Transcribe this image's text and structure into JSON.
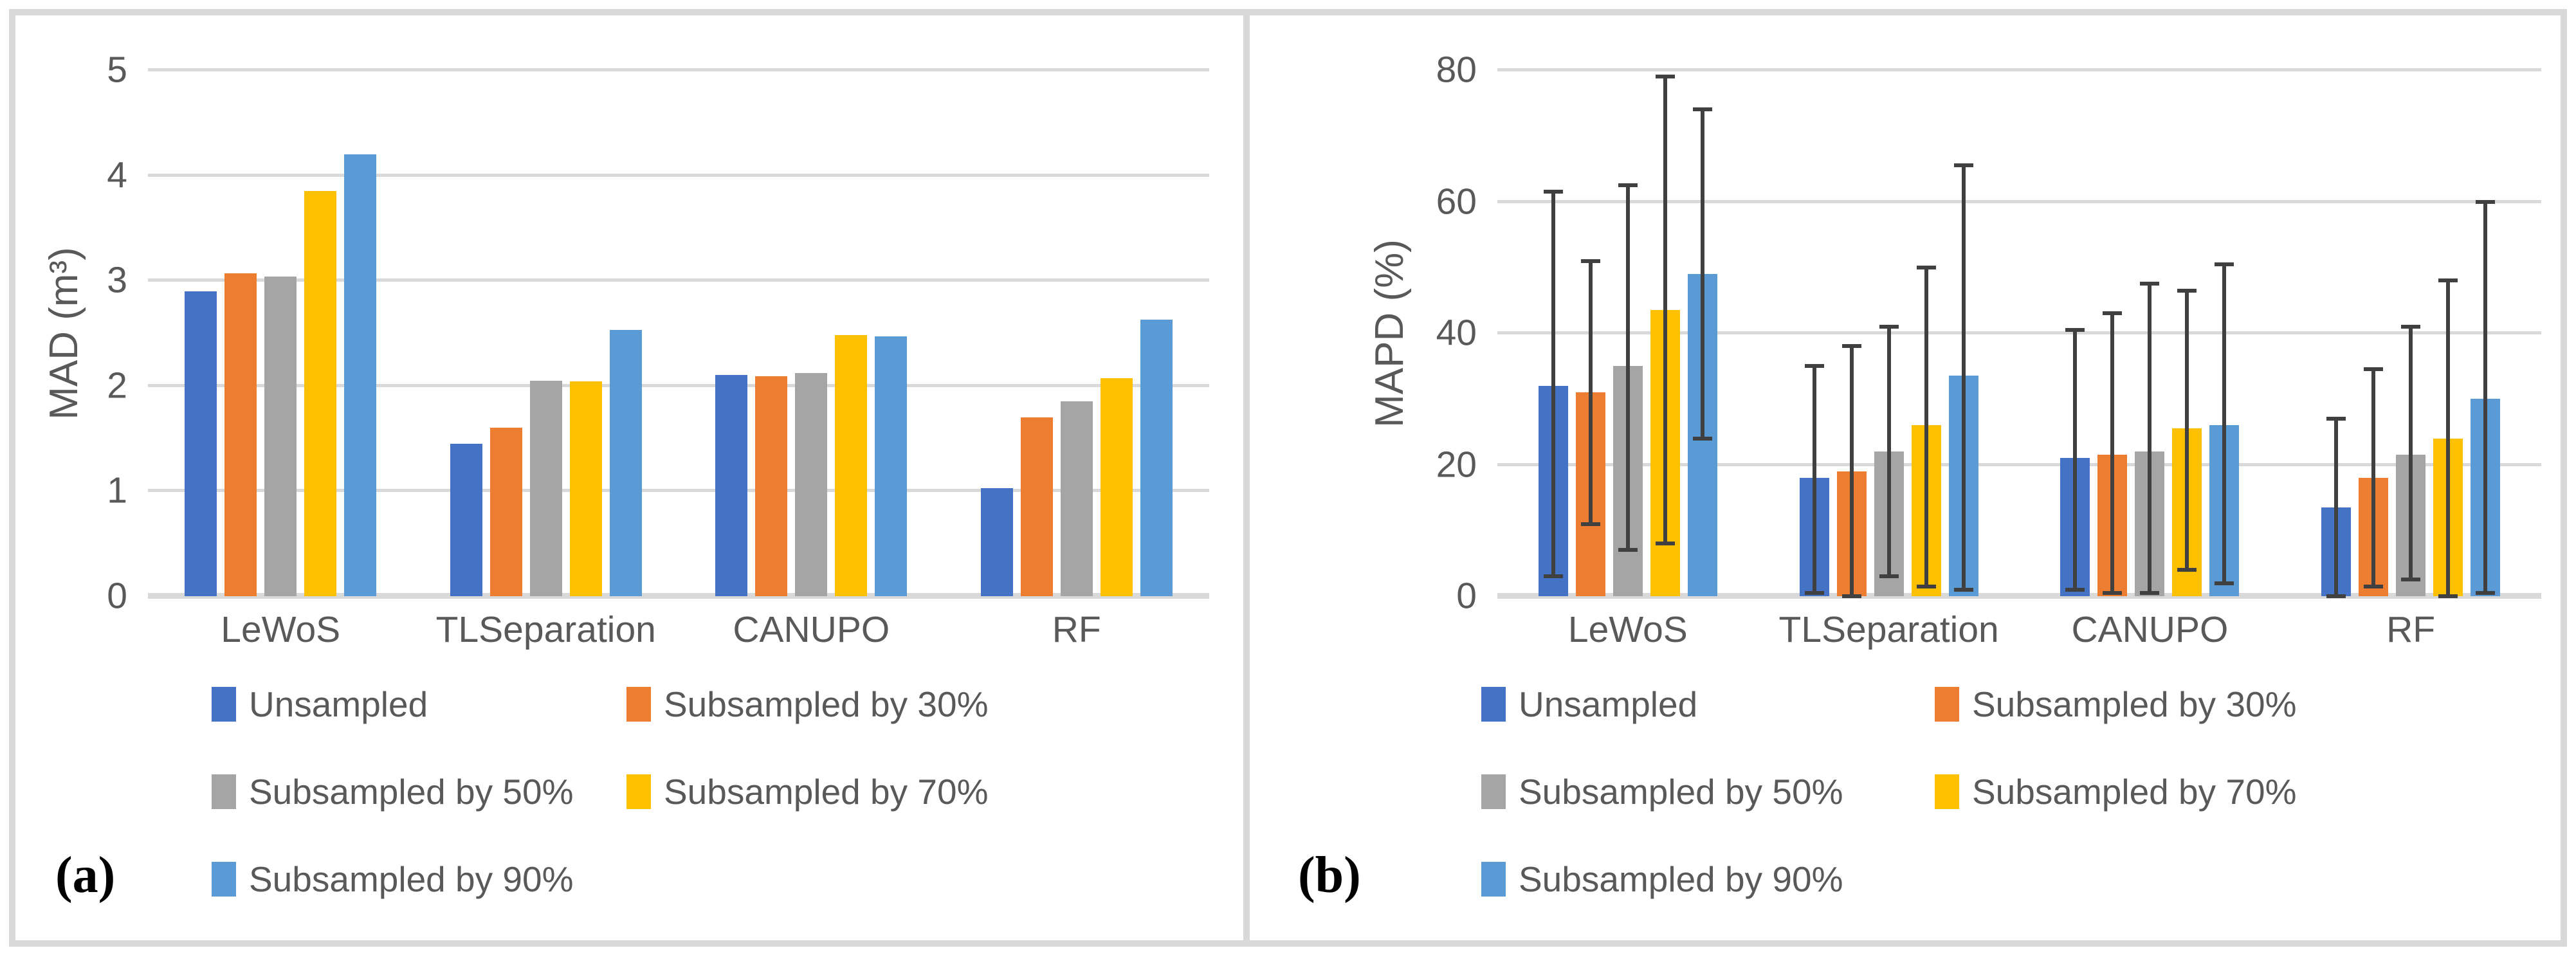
{
  "panels": [
    {
      "tag": "(a)"
    },
    {
      "tag": "(b)"
    }
  ],
  "colors": {
    "unsampled_blue": "#4472C4",
    "sub30_orange": "#ED7D31",
    "sub50_gray": "#A5A5A5",
    "sub70_yellow": "#FFC000",
    "sub90_lightblue": "#5B9BD5",
    "gridline": "#D9D9D9",
    "frame_border": "#D9D9D9",
    "axis_text": "#595959",
    "error_bar": "#404040",
    "panel_tag_text": "#000000",
    "background": "#FFFFFF"
  },
  "legend": {
    "items": [
      {
        "label": "Unsampled",
        "color": "#4472C4"
      },
      {
        "label": "Subsampled by 30%",
        "color": "#ED7D31"
      },
      {
        "label": "Subsampled by 50%",
        "color": "#A5A5A5"
      },
      {
        "label": "Subsampled by 70%",
        "color": "#FFC000"
      },
      {
        "label": "Subsampled by 90%",
        "color": "#5B9BD5"
      }
    ]
  },
  "chart_data": [
    {
      "type": "bar",
      "title": "",
      "ylabel": "MAD (m³)",
      "xlabel": "",
      "ylim": [
        0,
        5
      ],
      "yticks": [
        0,
        1,
        2,
        3,
        4,
        5
      ],
      "grid": true,
      "legend_position": "bottom",
      "categories": [
        "LeWoS",
        "TLSeparation",
        "CANUPO",
        "RF"
      ],
      "series": [
        {
          "name": "Unsampled",
          "color": "#4472C4",
          "values": [
            2.9,
            1.45,
            2.1,
            1.03
          ]
        },
        {
          "name": "Subsampled by 30%",
          "color": "#ED7D31",
          "values": [
            3.07,
            1.6,
            2.09,
            1.7
          ]
        },
        {
          "name": "Subsampled by 50%",
          "color": "#A5A5A5",
          "values": [
            3.04,
            2.05,
            2.12,
            1.85
          ]
        },
        {
          "name": "Subsampled by 70%",
          "color": "#FFC000",
          "values": [
            3.85,
            2.04,
            2.48,
            2.07
          ]
        },
        {
          "name": "Subsampled by 90%",
          "color": "#5B9BD5",
          "values": [
            4.2,
            2.53,
            2.47,
            2.63
          ]
        }
      ]
    },
    {
      "type": "bar",
      "title": "",
      "ylabel": "MAPD (%)",
      "xlabel": "",
      "ylim": [
        0,
        80
      ],
      "yticks": [
        0,
        20,
        40,
        60,
        80
      ],
      "grid": true,
      "legend_position": "bottom",
      "error_bars": "min-max whiskers, absolute values in data units",
      "categories": [
        "LeWoS",
        "TLSeparation",
        "CANUPO",
        "RF"
      ],
      "series": [
        {
          "name": "Unsampled",
          "color": "#4472C4",
          "values": [
            32.0,
            18.0,
            21.0,
            13.5
          ],
          "whisker_low": [
            3.0,
            0.5,
            1.0,
            0.0
          ],
          "whisker_high": [
            61.5,
            35.0,
            40.5,
            27.0
          ]
        },
        {
          "name": "Subsampled by 30%",
          "color": "#ED7D31",
          "values": [
            31.0,
            19.0,
            21.5,
            18.0
          ],
          "whisker_low": [
            11.0,
            0.0,
            0.5,
            1.5
          ],
          "whisker_high": [
            51.0,
            38.0,
            43.0,
            34.5
          ]
        },
        {
          "name": "Subsampled by 50%",
          "color": "#A5A5A5",
          "values": [
            35.0,
            22.0,
            22.0,
            21.5
          ],
          "whisker_low": [
            7.0,
            3.0,
            0.5,
            2.5
          ],
          "whisker_high": [
            62.5,
            41.0,
            47.5,
            41.0
          ]
        },
        {
          "name": "Subsampled by 70%",
          "color": "#FFC000",
          "values": [
            43.5,
            26.0,
            25.5,
            24.0
          ],
          "whisker_low": [
            8.0,
            1.5,
            4.0,
            0.0
          ],
          "whisker_high": [
            79.0,
            50.0,
            46.5,
            48.0
          ]
        },
        {
          "name": "Subsampled by 90%",
          "color": "#5B9BD5",
          "values": [
            49.0,
            33.5,
            26.0,
            30.0
          ],
          "whisker_low": [
            24.0,
            1.0,
            2.0,
            0.5
          ],
          "whisker_high": [
            74.0,
            65.5,
            50.5,
            60.0
          ]
        }
      ]
    }
  ]
}
